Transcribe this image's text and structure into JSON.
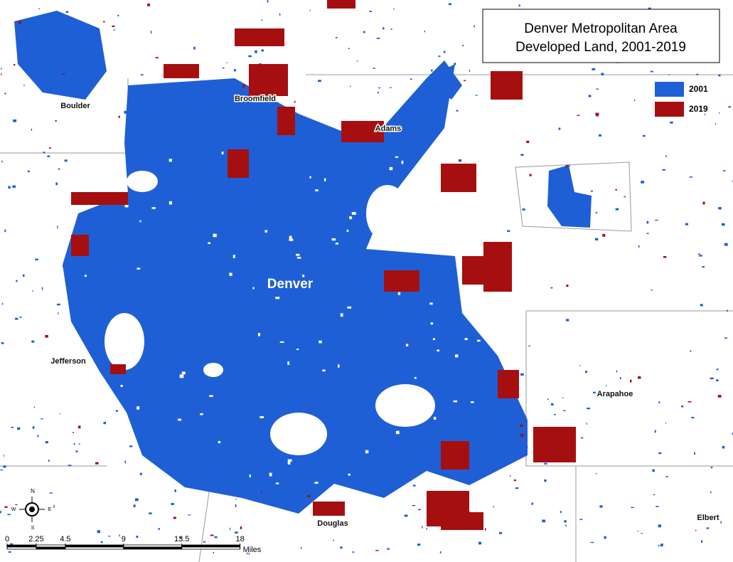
{
  "title": {
    "lines": [
      "Denver Metropolitan Area",
      "Developed Land, 2001-2019"
    ]
  },
  "legend": [
    {
      "label": "2001",
      "color": "#1f5fd6"
    },
    {
      "label": "2019",
      "color": "#a50f0f"
    }
  ],
  "places": [
    "Boulder",
    "Broomfield",
    "Adams",
    "Denver",
    "Jefferson",
    "Arapahoe",
    "Douglas",
    "Elbert"
  ],
  "compass": {
    "north": "N",
    "south": "S",
    "east": "E",
    "west": "W"
  },
  "scale_bar": {
    "ticks": [
      0,
      2.25,
      4.5,
      9,
      13.5,
      18
    ],
    "unit": "Miles"
  }
}
